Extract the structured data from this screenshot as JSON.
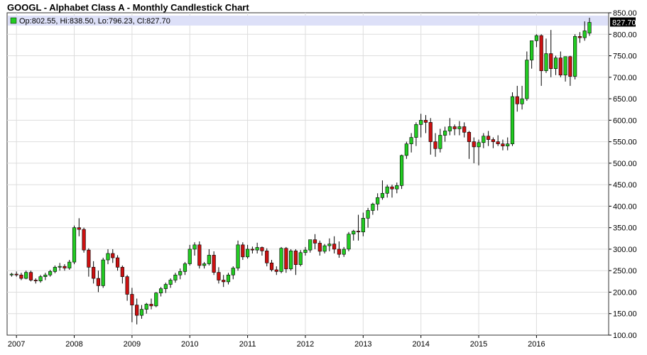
{
  "title": "GOOGL - Alphabet Class A - Monthly Candlestick Chart",
  "legend": {
    "text": "Op:802.55, Hi:838.50, Lo:796.23, Cl:827.70",
    "swatch_color": "#22cc22"
  },
  "last_price_label": "827.70",
  "colors": {
    "up": "#22cc22",
    "down": "#cc1111",
    "wick": "#000000",
    "grid": "#dddddd",
    "highlight": "#dde0f8"
  },
  "chart_data": {
    "type": "candlestick",
    "title": "GOOGL - Alphabet Class A - Monthly Candlestick Chart",
    "x_start": "2006-12",
    "interval": "monthly",
    "ylim": [
      100,
      850
    ],
    "yticks": [
      100,
      150,
      200,
      250,
      300,
      350,
      400,
      450,
      500,
      550,
      600,
      650,
      700,
      750,
      800,
      850
    ],
    "ytick_labels": [
      "100.00",
      "150.00",
      "200.00",
      "250.00",
      "300.00",
      "350.00",
      "400.00",
      "450.00",
      "500.00",
      "550.00",
      "600.00",
      "650.00",
      "700.00",
      "750.00",
      "800.00",
      "850.00"
    ],
    "xtick_labels": [
      "2007",
      "2008",
      "2009",
      "2010",
      "2011",
      "2012",
      "2013",
      "2014",
      "2015",
      "2016"
    ],
    "xtick_dates": [
      "2007-01",
      "2008-01",
      "2009-01",
      "2010-01",
      "2011-01",
      "2012-01",
      "2013-01",
      "2014-01",
      "2015-01",
      "2016-01"
    ],
    "grid": true,
    "last_value": 827.7,
    "ohlc": [
      [
        240,
        245,
        236,
        242
      ],
      [
        242,
        248,
        236,
        240
      ],
      [
        240,
        245,
        228,
        232
      ],
      [
        232,
        250,
        230,
        246
      ],
      [
        246,
        250,
        225,
        228
      ],
      [
        228,
        232,
        220,
        226
      ],
      [
        226,
        240,
        222,
        236
      ],
      [
        236,
        245,
        228,
        240
      ],
      [
        240,
        252,
        236,
        248
      ],
      [
        248,
        262,
        244,
        258
      ],
      [
        258,
        268,
        250,
        260
      ],
      [
        260,
        265,
        250,
        256
      ],
      [
        256,
        275,
        252,
        270
      ],
      [
        270,
        355,
        265,
        350
      ],
      [
        350,
        372,
        330,
        346
      ],
      [
        346,
        350,
        292,
        298
      ],
      [
        298,
        302,
        236,
        258
      ],
      [
        258,
        272,
        220,
        232
      ],
      [
        232,
        250,
        200,
        215
      ],
      [
        215,
        280,
        210,
        275
      ],
      [
        275,
        300,
        265,
        290
      ],
      [
        290,
        300,
        268,
        280
      ],
      [
        280,
        286,
        250,
        258
      ],
      [
        258,
        262,
        220,
        236
      ],
      [
        236,
        240,
        180,
        195
      ],
      [
        195,
        210,
        130,
        170
      ],
      [
        170,
        185,
        125,
        146
      ],
      [
        146,
        170,
        138,
        160
      ],
      [
        160,
        175,
        150,
        172
      ],
      [
        172,
        185,
        160,
        168
      ],
      [
        168,
        200,
        165,
        198
      ],
      [
        198,
        212,
        190,
        208
      ],
      [
        208,
        222,
        198,
        218
      ],
      [
        218,
        232,
        210,
        228
      ],
      [
        228,
        245,
        222,
        240
      ],
      [
        240,
        255,
        230,
        248
      ],
      [
        248,
        270,
        240,
        266
      ],
      [
        266,
        310,
        262,
        300
      ],
      [
        300,
        316,
        285,
        310
      ],
      [
        310,
        318,
        255,
        262
      ],
      [
        262,
        270,
        255,
        266
      ],
      [
        266,
        300,
        262,
        286
      ],
      [
        286,
        295,
        240,
        246
      ],
      [
        246,
        258,
        220,
        228
      ],
      [
        228,
        240,
        212,
        224
      ],
      [
        224,
        245,
        218,
        240
      ],
      [
        240,
        260,
        230,
        256
      ],
      [
        256,
        320,
        250,
        310
      ],
      [
        310,
        316,
        275,
        282
      ],
      [
        282,
        310,
        278,
        300
      ],
      [
        300,
        306,
        290,
        298
      ],
      [
        298,
        315,
        290,
        304
      ],
      [
        304,
        306,
        285,
        296
      ],
      [
        296,
        302,
        260,
        268
      ],
      [
        268,
        275,
        248,
        252
      ],
      [
        252,
        260,
        240,
        248
      ],
      [
        248,
        305,
        244,
        302
      ],
      [
        302,
        305,
        245,
        254
      ],
      [
        254,
        300,
        250,
        296
      ],
      [
        296,
        300,
        240,
        264
      ],
      [
        264,
        298,
        260,
        292
      ],
      [
        292,
        305,
        285,
        298
      ],
      [
        298,
        318,
        292,
        322
      ],
      [
        322,
        335,
        300,
        314
      ],
      [
        314,
        320,
        285,
        295
      ],
      [
        295,
        312,
        290,
        308
      ],
      [
        308,
        325,
        295,
        312
      ],
      [
        312,
        330,
        290,
        300
      ],
      [
        300,
        318,
        280,
        288
      ],
      [
        288,
        305,
        282,
        300
      ],
      [
        300,
        340,
        295,
        335
      ],
      [
        335,
        345,
        320,
        342
      ],
      [
        342,
        380,
        320,
        340
      ],
      [
        340,
        385,
        330,
        372
      ],
      [
        372,
        396,
        350,
        390
      ],
      [
        390,
        408,
        380,
        405
      ],
      [
        405,
        430,
        390,
        420
      ],
      [
        420,
        460,
        415,
        430
      ],
      [
        430,
        450,
        420,
        445
      ],
      [
        445,
        450,
        420,
        440
      ],
      [
        440,
        455,
        430,
        448
      ],
      [
        448,
        520,
        440,
        518
      ],
      [
        518,
        550,
        510,
        545
      ],
      [
        545,
        570,
        525,
        560
      ],
      [
        560,
        595,
        540,
        590
      ],
      [
        590,
        615,
        560,
        600
      ],
      [
        600,
        612,
        570,
        595
      ],
      [
        595,
        605,
        520,
        550
      ],
      [
        550,
        570,
        515,
        534
      ],
      [
        534,
        580,
        525,
        565
      ],
      [
        565,
        585,
        550,
        575
      ],
      [
        575,
        605,
        565,
        585
      ],
      [
        585,
        590,
        565,
        580
      ],
      [
        580,
        598,
        565,
        585
      ],
      [
        585,
        595,
        560,
        572
      ],
      [
        572,
        575,
        510,
        550
      ],
      [
        550,
        560,
        500,
        538
      ],
      [
        538,
        555,
        495,
        548
      ],
      [
        548,
        570,
        535,
        563
      ],
      [
        563,
        575,
        540,
        555
      ],
      [
        555,
        560,
        535,
        550
      ],
      [
        550,
        565,
        540,
        545
      ],
      [
        545,
        555,
        530,
        540
      ],
      [
        540,
        560,
        530,
        545
      ],
      [
        545,
        665,
        540,
        655
      ],
      [
        655,
        680,
        620,
        638
      ],
      [
        638,
        680,
        625,
        650
      ],
      [
        650,
        760,
        645,
        740
      ],
      [
        740,
        780,
        720,
        785
      ],
      [
        785,
        800,
        770,
        797
      ],
      [
        797,
        800,
        680,
        715
      ],
      [
        715,
        790,
        710,
        755
      ],
      [
        755,
        810,
        700,
        720
      ],
      [
        720,
        750,
        705,
        745
      ],
      [
        745,
        760,
        700,
        705
      ],
      [
        705,
        745,
        690,
        748
      ],
      [
        748,
        750,
        680,
        702
      ],
      [
        702,
        800,
        695,
        795
      ],
      [
        795,
        805,
        780,
        792
      ],
      [
        792,
        830,
        785,
        808
      ],
      [
        802.55,
        838.5,
        796.23,
        827.7
      ]
    ]
  }
}
